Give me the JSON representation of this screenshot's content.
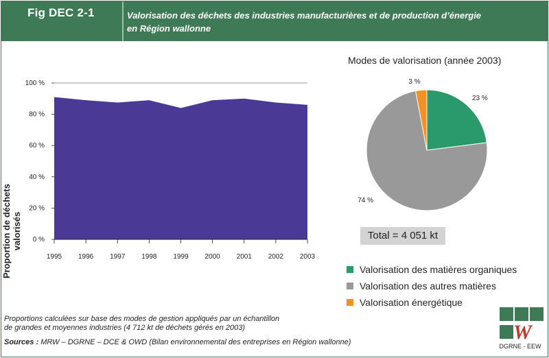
{
  "header": {
    "fig_label": "Fig DEC 2-1",
    "title_line1": "Valorisation des déchets des industries manufacturières et de production d’énergie",
    "title_line2": "en Région wallonne"
  },
  "chart_data": [
    {
      "type": "area",
      "ylabel": "Proportion de déchets valorisés",
      "x": [
        "1995",
        "1996",
        "1997",
        "1998",
        "1999",
        "2000",
        "2001",
        "2002",
        "2003"
      ],
      "values": [
        91,
        89,
        87.5,
        89,
        84,
        89,
        90,
        87.5,
        86
      ],
      "ylim": [
        0,
        100
      ],
      "yticks": [
        "0 %",
        "20 %",
        "40 %",
        "60 %",
        "80 %",
        "100 %"
      ],
      "color": "#4b3a95"
    },
    {
      "type": "pie",
      "title": "Modes de valorisation (année 2003)",
      "labels": [
        "Valorisation des matières organiques",
        "Valorisation des autres matières",
        "Valorisation énergétique"
      ],
      "values": [
        23,
        74,
        3
      ],
      "value_labels": [
        "23 %",
        "74 %",
        "3 %"
      ],
      "colors": [
        "#2a9a6a",
        "#999999",
        "#f39223"
      ],
      "total": "Total = 4 051 kt"
    }
  ],
  "notes": {
    "line1": "Proportions calculées sur base des modes de gestion appliqués par un échantillon",
    "line2": "de grandes et moyennes industries (4 712 kt de déchets gérés en 2003)"
  },
  "sources": {
    "label": "Sources :",
    "text": " MRW – DGRNE – DCE & OWD (Bilan environnemental des entreprises en Région wallonne)"
  },
  "logo": {
    "text": "DGRNE - EEW"
  }
}
